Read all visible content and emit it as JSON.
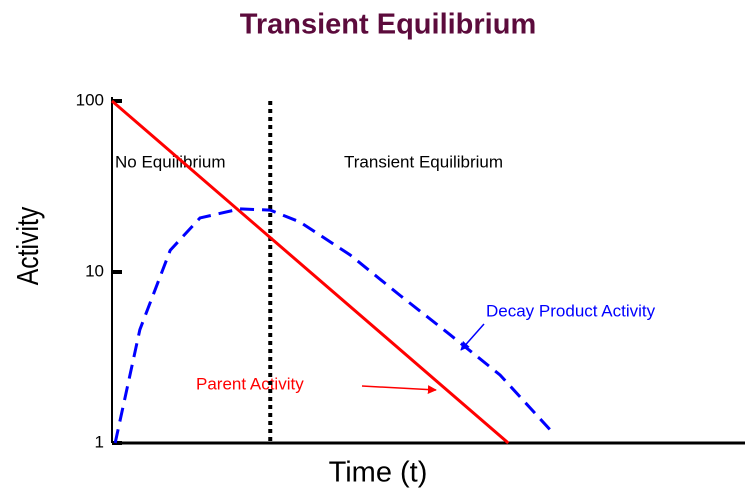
{
  "chart_data": {
    "type": "line",
    "title": "Transient Equilibrium",
    "x_label": "Time (t)",
    "y_label": "Activity",
    "log_y": true,
    "ylim": [
      1,
      100
    ],
    "yticks": [
      1,
      10,
      100
    ],
    "xlim": [
      0,
      10
    ],
    "vline": 2.5,
    "annotations": [
      "No Equilibrium",
      "Transient Equilibrium"
    ],
    "series": [
      {
        "name": "Parent Activity",
        "color": "#ff0000",
        "dash": false,
        "x": [
          0,
          6.26
        ],
        "values": [
          100,
          1
        ]
      },
      {
        "name": "Decay Product Activity",
        "color": "#0000ff",
        "dash": true,
        "x": [
          0.05,
          0.44,
          0.92,
          1.39,
          2.02,
          2.5,
          2.97,
          3.76,
          4.55,
          5.34,
          6.13,
          7.0
        ],
        "values": [
          1,
          4.6,
          13.4,
          20.7,
          23.4,
          23,
          19.6,
          12.6,
          7.3,
          4.3,
          2.5,
          1.11
        ]
      }
    ]
  }
}
